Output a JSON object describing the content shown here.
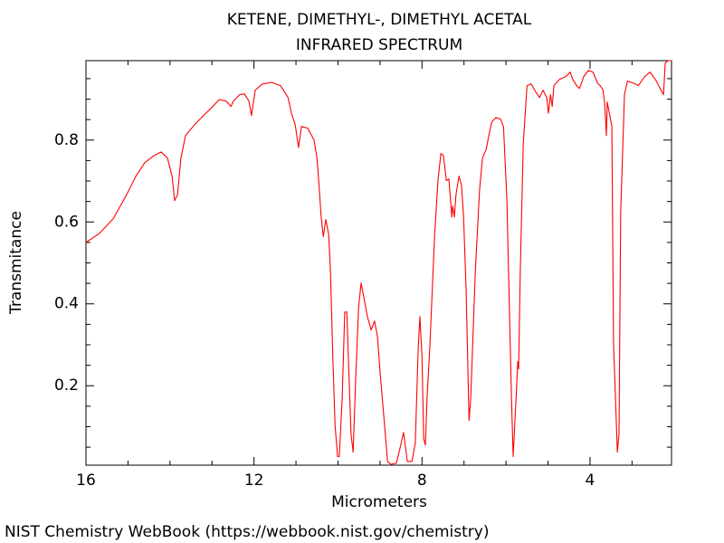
{
  "chart_data": {
    "type": "line",
    "title": "KETENE, DIMETHYL-, DIMETHYL ACETAL",
    "subtitle": "INFRARED SPECTRUM",
    "xlabel": "Micrometers",
    "ylabel": "Transmitance",
    "footer": "NIST Chemistry WebBook (https://webbook.nist.gov/chemistry)",
    "color": "#ff0000",
    "grid": false,
    "xlim": [
      16,
      2.06
    ],
    "ylim": [
      0.006,
      0.994
    ],
    "xticks": [
      16,
      12,
      8,
      4
    ],
    "yticks": [
      0.2,
      0.4,
      0.6,
      0.8
    ],
    "xminorticks": [
      15,
      14,
      13,
      11,
      10,
      9,
      7,
      6,
      5,
      3
    ],
    "yminorticks": [
      0.05,
      0.1,
      0.15,
      0.25,
      0.3,
      0.35,
      0.45,
      0.5,
      0.55,
      0.65,
      0.7,
      0.75,
      0.85,
      0.9,
      0.95
    ],
    "x": [
      16.0,
      15.68,
      15.35,
      15.03,
      14.81,
      14.6,
      14.38,
      14.21,
      14.06,
      13.95,
      13.89,
      13.82,
      13.74,
      13.63,
      13.41,
      13.2,
      12.98,
      12.83,
      12.66,
      12.55,
      12.49,
      12.34,
      12.23,
      12.12,
      12.06,
      11.97,
      11.8,
      11.58,
      11.37,
      11.19,
      11.11,
      11.02,
      10.94,
      10.87,
      10.72,
      10.57,
      10.5,
      10.46,
      10.4,
      10.35,
      10.29,
      10.22,
      10.18,
      10.12,
      10.07,
      10.01,
      9.97,
      9.9,
      9.84,
      9.79,
      9.75,
      9.69,
      9.64,
      9.58,
      9.51,
      9.45,
      9.38,
      9.3,
      9.21,
      9.13,
      9.06,
      9.0,
      8.91,
      8.82,
      8.74,
      8.61,
      8.52,
      8.44,
      8.39,
      8.35,
      8.24,
      8.16,
      8.09,
      8.05,
      8.0,
      7.96,
      7.92,
      7.88,
      7.81,
      7.7,
      7.62,
      7.55,
      7.49,
      7.42,
      7.36,
      7.29,
      7.27,
      7.23,
      7.19,
      7.12,
      7.06,
      7.01,
      6.95,
      6.88,
      6.84,
      6.73,
      6.63,
      6.56,
      6.47,
      6.41,
      6.34,
      6.24,
      6.13,
      6.06,
      5.98,
      5.87,
      5.83,
      5.76,
      5.72,
      5.7,
      5.66,
      5.59,
      5.5,
      5.4,
      5.29,
      5.2,
      5.12,
      5.03,
      4.99,
      4.94,
      4.9,
      4.86,
      4.73,
      4.58,
      4.47,
      4.41,
      4.32,
      4.25,
      4.15,
      4.04,
      3.93,
      3.82,
      3.76,
      3.69,
      3.65,
      3.61,
      3.59,
      3.54,
      3.48,
      3.44,
      3.39,
      3.35,
      3.31,
      3.27,
      3.18,
      3.11,
      2.96,
      2.85,
      2.7,
      2.57,
      2.42,
      2.31,
      2.25,
      2.21,
      2.14,
      2.06
    ],
    "values": [
      0.55,
      0.572,
      0.608,
      0.667,
      0.712,
      0.745,
      0.762,
      0.771,
      0.756,
      0.712,
      0.652,
      0.667,
      0.756,
      0.811,
      0.838,
      0.86,
      0.882,
      0.899,
      0.895,
      0.882,
      0.895,
      0.911,
      0.913,
      0.895,
      0.86,
      0.922,
      0.937,
      0.941,
      0.933,
      0.904,
      0.866,
      0.838,
      0.782,
      0.833,
      0.829,
      0.8,
      0.756,
      0.701,
      0.612,
      0.564,
      0.606,
      0.568,
      0.48,
      0.259,
      0.104,
      0.027,
      0.027,
      0.17,
      0.38,
      0.38,
      0.259,
      0.082,
      0.038,
      0.214,
      0.391,
      0.451,
      0.413,
      0.369,
      0.336,
      0.358,
      0.32,
      0.236,
      0.126,
      0.015,
      0.008,
      0.011,
      0.049,
      0.086,
      0.049,
      0.015,
      0.015,
      0.06,
      0.292,
      0.369,
      0.27,
      0.071,
      0.055,
      0.17,
      0.303,
      0.568,
      0.701,
      0.767,
      0.762,
      0.701,
      0.705,
      0.612,
      0.639,
      0.612,
      0.667,
      0.712,
      0.69,
      0.612,
      0.435,
      0.115,
      0.17,
      0.48,
      0.678,
      0.756,
      0.778,
      0.811,
      0.844,
      0.855,
      0.851,
      0.833,
      0.656,
      0.17,
      0.027,
      0.17,
      0.259,
      0.241,
      0.48,
      0.789,
      0.933,
      0.937,
      0.917,
      0.904,
      0.922,
      0.904,
      0.866,
      0.911,
      0.882,
      0.933,
      0.948,
      0.955,
      0.966,
      0.948,
      0.933,
      0.926,
      0.955,
      0.97,
      0.966,
      0.939,
      0.933,
      0.922,
      0.888,
      0.811,
      0.893,
      0.866,
      0.833,
      0.303,
      0.159,
      0.038,
      0.082,
      0.623,
      0.911,
      0.944,
      0.939,
      0.933,
      0.955,
      0.966,
      0.944,
      0.922,
      0.911,
      0.988,
      0.994,
      0.994
    ]
  }
}
